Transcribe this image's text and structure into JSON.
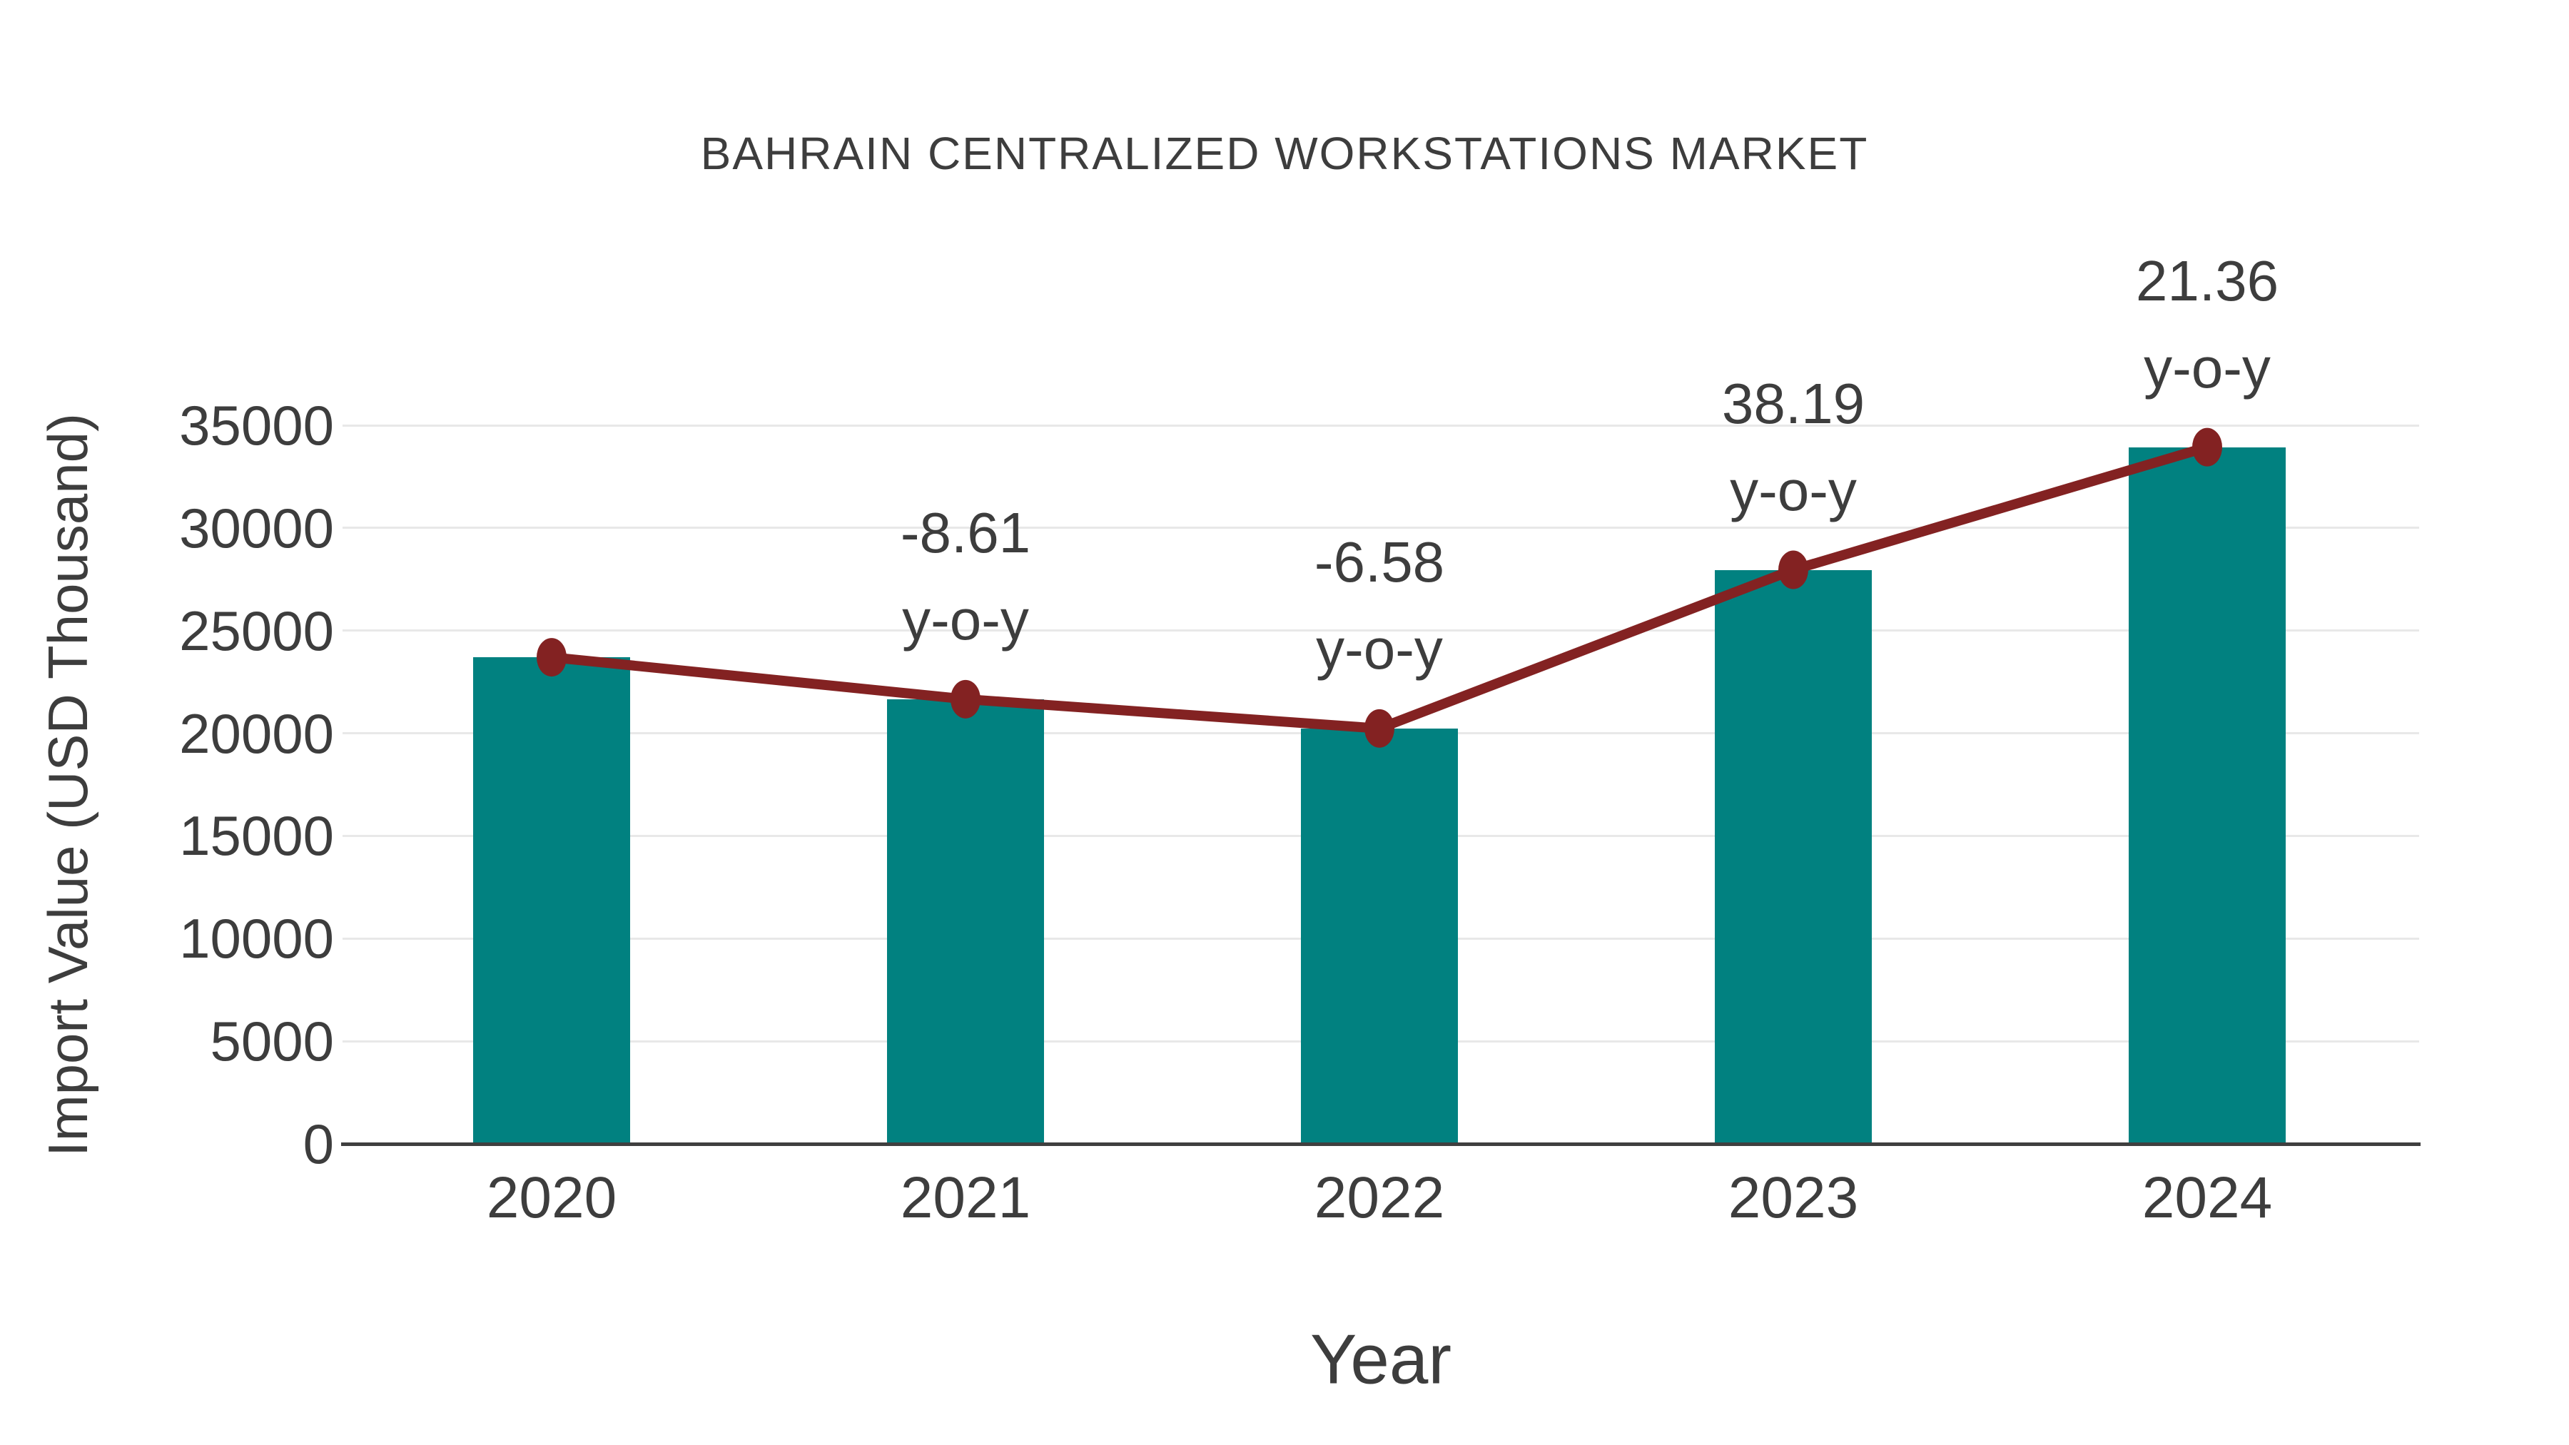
{
  "chart_data": {
    "type": "bar",
    "combo": "bar+line",
    "title": "BAHRAIN CENTRALIZED WORKSTATIONS MARKET",
    "xlabel": "Year",
    "ylabel": "Import Value (USD Thousand)",
    "categories": [
      "2020",
      "2021",
      "2022",
      "2023",
      "2024"
    ],
    "series": [
      {
        "name": "import-value-bars",
        "type": "bar",
        "values": [
          23700,
          21659,
          20234,
          27961,
          33935
        ]
      },
      {
        "name": "import-value-line",
        "type": "line",
        "values": [
          23700,
          21659,
          20234,
          27961,
          33935
        ]
      }
    ],
    "annotations": [
      {
        "category": "2021",
        "value_text": "-8.61",
        "unit_text": "y-o-y",
        "yoy_percent": -8.61
      },
      {
        "category": "2022",
        "value_text": "-6.58",
        "unit_text": "y-o-y",
        "yoy_percent": -6.58
      },
      {
        "category": "2023",
        "value_text": "38.19",
        "unit_text": "y-o-y",
        "yoy_percent": 38.19
      },
      {
        "category": "2024",
        "value_text": "21.36",
        "unit_text": "y-o-y",
        "yoy_percent": 21.36
      }
    ],
    "ylim": [
      0,
      35000
    ],
    "yticks": [
      0,
      5000,
      10000,
      15000,
      20000,
      25000,
      30000,
      35000
    ],
    "grid": "horizontal",
    "legend": "none",
    "colors": {
      "bar": "#018180",
      "line": "#832222",
      "marker": "#832222",
      "grid": "#e8e8e8",
      "axis": "#3f3f3f",
      "text": "#3d3d3d",
      "background": "#ffffff"
    }
  }
}
